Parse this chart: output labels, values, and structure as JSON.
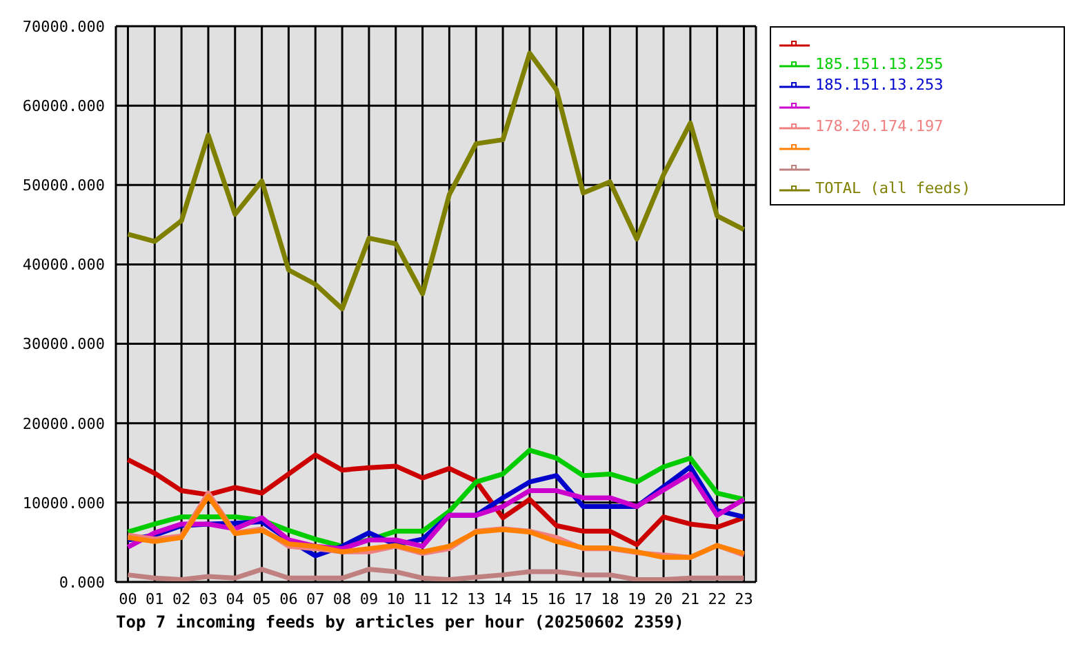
{
  "chart_data": {
    "type": "line",
    "title": "Top 7 incoming feeds by articles per hour (20250602 2359)",
    "categories": [
      "00",
      "01",
      "02",
      "03",
      "04",
      "05",
      "06",
      "07",
      "08",
      "09",
      "10",
      "11",
      "12",
      "13",
      "14",
      "15",
      "16",
      "17",
      "18",
      "19",
      "20",
      "21",
      "22",
      "23"
    ],
    "series": [
      {
        "color": "#cc0000",
        "values": [
          15400,
          13700,
          11500,
          11000,
          11900,
          11200,
          13600,
          16000,
          14100,
          14400,
          14600,
          13100,
          14300,
          12700,
          8100,
          10400,
          7100,
          6400,
          6400,
          4700,
          8200,
          7300,
          6900,
          8100
        ]
      },
      {
        "name": "185.151.13.255",
        "color": "#00cc00",
        "values": [
          6300,
          7300,
          8200,
          8200,
          8200,
          7800,
          6500,
          5400,
          4500,
          5300,
          6400,
          6400,
          8900,
          12600,
          13600,
          16600,
          15600,
          13400,
          13600,
          12600,
          14500,
          15600,
          11200,
          10400
        ]
      },
      {
        "name": "185.151.13.253",
        "color": "#0000cc",
        "values": [
          5300,
          5900,
          7100,
          7300,
          7400,
          7600,
          5300,
          3300,
          4500,
          6200,
          4700,
          5400,
          8400,
          8400,
          10600,
          12600,
          13400,
          9500,
          9500,
          9500,
          12000,
          14500,
          9000,
          8200
        ]
      },
      {
        "color": "#cc00cc",
        "values": [
          4400,
          6200,
          7300,
          7300,
          6700,
          8100,
          5300,
          4500,
          4200,
          5300,
          5300,
          4500,
          8400,
          8400,
          9500,
          11500,
          11500,
          10600,
          10600,
          9500,
          11600,
          13600,
          8400,
          10400
        ]
      },
      {
        "name": "178.20.174.197",
        "color": "#f08080",
        "values": [
          5900,
          5400,
          5800,
          11200,
          6200,
          6700,
          4500,
          4200,
          3800,
          3800,
          4500,
          3600,
          4200,
          6400,
          6700,
          6400,
          5600,
          4200,
          4200,
          3700,
          3400,
          3100,
          4600,
          3400
        ]
      },
      {
        "color": "#ff8000",
        "values": [
          5600,
          5100,
          5600,
          10800,
          6100,
          6500,
          4800,
          4500,
          3800,
          4200,
          4600,
          3800,
          4500,
          6300,
          6600,
          6300,
          5100,
          4300,
          4300,
          3800,
          3100,
          3100,
          4600,
          3600
        ]
      },
      {
        "color": "#c08080",
        "values": [
          900,
          500,
          300,
          700,
          500,
          1600,
          500,
          500,
          500,
          1600,
          1300,
          500,
          300,
          600,
          900,
          1300,
          1300,
          900,
          900,
          300,
          300,
          500,
          500,
          500
        ]
      },
      {
        "name": "TOTAL (all feeds)",
        "color": "#808000",
        "values": [
          43800,
          42900,
          45500,
          56300,
          46300,
          50500,
          39300,
          37500,
          34400,
          43300,
          42600,
          36300,
          48800,
          55200,
          55700,
          66600,
          62000,
          49000,
          50400,
          43200,
          51300,
          57800,
          46100,
          44400
        ]
      }
    ],
    "ylim": [
      0,
      70000
    ],
    "yticks": [
      {
        "value": 0,
        "label": "0.000"
      },
      {
        "value": 10000,
        "label": "10000.000"
      },
      {
        "value": 20000,
        "label": "20000.000"
      },
      {
        "value": 30000,
        "label": "30000.000"
      },
      {
        "value": 40000,
        "label": "40000.000"
      },
      {
        "value": 50000,
        "label": "50000.000"
      },
      {
        "value": 60000,
        "label": "60000.000"
      },
      {
        "value": 70000,
        "label": "70000.000"
      }
    ],
    "grid": true,
    "legend": "top right",
    "marker": "none",
    "line_style": "solid"
  }
}
